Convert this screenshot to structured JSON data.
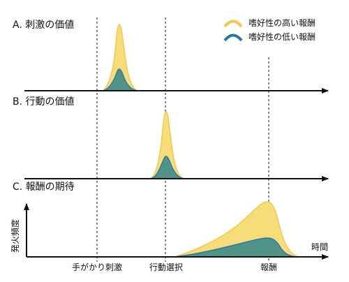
{
  "colors": {
    "high": "#f2c94c",
    "high_fill": "#f7dd7a",
    "low": "#2b78a6",
    "low_fill": "#4f9487",
    "axis": "#111111"
  },
  "legend": {
    "high_label": "嗜好性の高い報酬",
    "low_label": "嗜好性の低い報酬"
  },
  "panels": {
    "a": "A. 刺激の価値",
    "b": "B. 行動の価値",
    "c": "C. 報酬の期待"
  },
  "axes": {
    "ylabel": "発火頻度",
    "xlabel": "時間"
  },
  "events": {
    "cue": "手がかり刺激",
    "action": "行動選択",
    "reward": "報酬"
  }
}
